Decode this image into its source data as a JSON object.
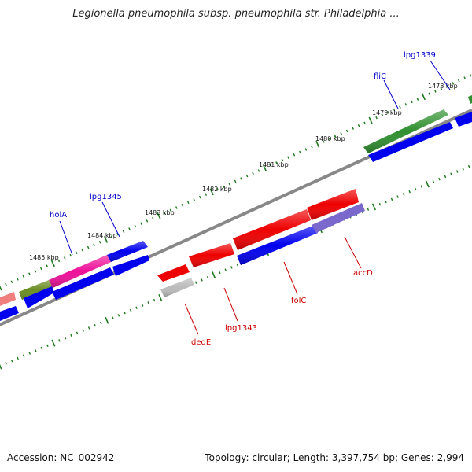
{
  "title": "Legionella pneumophila subsp. pneumophila str. Philadelphia ...",
  "footer": {
    "accession": "Accession: NC_002942",
    "stats": "Topology: circular; Length: 3,397,754 bp; Genes: 2,994"
  },
  "scale_labels": [
    "1478 kbp",
    "1479 kbp",
    "1480 kbp",
    "1481 kbp",
    "1482 kbp",
    "1483 kbp",
    "1484 kbp",
    "1485 kbp"
  ],
  "gene_labels_forward": [
    "lpg1339",
    "fliC",
    "lpg1345",
    "holA"
  ],
  "gene_labels_reverse": [
    "accD",
    "folC",
    "lpg1343",
    "dedE"
  ],
  "colors": {
    "forward_label": "#0000cc",
    "reverse_label": "#cc0000",
    "tick": "#1a7a1a",
    "backbone": "#888888",
    "blue": "#0000ee",
    "red": "#ee0000",
    "green": "#2f8f2f",
    "magenta": "#ee1199",
    "olive": "#6b8e23",
    "purple": "#7b68cc",
    "gray": "#bbbbbb",
    "salmon": "#f08080"
  }
}
